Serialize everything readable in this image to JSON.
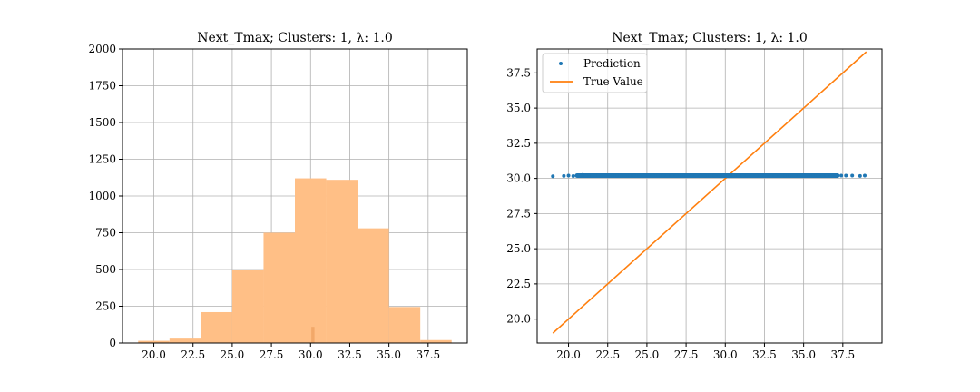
{
  "chart_data": [
    {
      "type": "bar",
      "title": "Next_Tmax; Clusters: 1, λ: 1.0",
      "xlabel": "",
      "ylabel": "",
      "xlim": [
        18,
        40
      ],
      "ylim": [
        0,
        2000
      ],
      "xticks": [
        20.0,
        22.5,
        25.0,
        27.5,
        30.0,
        32.5,
        35.0,
        37.5
      ],
      "yticks": [
        0,
        250,
        500,
        750,
        1000,
        1250,
        1500,
        1750,
        2000
      ],
      "grid": true,
      "bar_color": "#ffbf86",
      "bins": [
        {
          "x0": 19.0,
          "x1": 21.0,
          "count": 15
        },
        {
          "x0": 21.0,
          "x1": 23.0,
          "count": 30
        },
        {
          "x0": 23.0,
          "x1": 25.0,
          "count": 210
        },
        {
          "x0": 25.0,
          "x1": 27.0,
          "count": 500
        },
        {
          "x0": 27.0,
          "x1": 29.0,
          "count": 750
        },
        {
          "x0": 29.0,
          "x1": 31.0,
          "count": 1120
        },
        {
          "x0": 31.0,
          "x1": 33.0,
          "count": 1110
        },
        {
          "x0": 33.0,
          "x1": 35.0,
          "count": 780
        },
        {
          "x0": 35.0,
          "x1": 37.0,
          "count": 245
        },
        {
          "x0": 37.0,
          "x1": 39.0,
          "count": 20
        }
      ],
      "prediction_bin": {
        "x0": 30.05,
        "x1": 30.25,
        "count": 110
      }
    },
    {
      "type": "scatter",
      "title": "Next_Tmax; Clusters: 1, λ: 1.0",
      "xlabel": "",
      "ylabel": "",
      "xlim": [
        18,
        40
      ],
      "ylim": [
        18.3,
        39.2
      ],
      "xticks": [
        20.0,
        22.5,
        25.0,
        27.5,
        30.0,
        32.5,
        35.0,
        37.5
      ],
      "yticks": [
        20.0,
        22.5,
        25.0,
        27.5,
        30.0,
        32.5,
        35.0,
        37.5
      ],
      "grid": true,
      "legend": "top-left",
      "series": [
        {
          "name": "Prediction",
          "kind": "points",
          "color": "#1f77b4",
          "x": [
            19.0,
            19.7,
            20.0,
            20.3,
            20.6,
            20.9,
            21.1,
            21.3,
            21.5,
            21.7,
            21.9,
            22.1,
            22.3,
            22.6,
            22.8,
            23.1,
            23.3,
            23.6,
            23.9,
            24.2,
            24.5,
            24.8,
            25.1,
            25.4,
            25.7,
            26.0,
            26.3,
            26.6,
            26.9,
            27.2,
            27.5,
            27.8,
            28.1,
            28.4,
            28.7,
            29.0,
            29.3,
            29.6,
            29.9,
            30.2,
            30.5,
            30.8,
            31.1,
            31.4,
            31.7,
            32.0,
            32.3,
            32.6,
            32.9,
            33.2,
            33.5,
            33.8,
            34.1,
            34.4,
            34.7,
            35.0,
            35.3,
            35.6,
            35.9,
            36.2,
            36.5,
            36.8,
            37.1,
            37.4,
            37.7,
            38.1,
            38.6,
            38.9
          ],
          "y": [
            30.15,
            30.18,
            30.2,
            30.17,
            30.22,
            30.25,
            30.2,
            30.18,
            30.21,
            30.23,
            30.2,
            30.19,
            30.22,
            30.2,
            30.21,
            30.19,
            30.22,
            30.2,
            30.2,
            30.21,
            30.19,
            30.2,
            30.2,
            30.21,
            30.2,
            30.19,
            30.2,
            30.2,
            30.21,
            30.2,
            30.2,
            30.19,
            30.2,
            30.21,
            30.2,
            30.2,
            30.2,
            30.19,
            30.2,
            30.21,
            30.2,
            30.2,
            30.19,
            30.2,
            30.21,
            30.2,
            30.2,
            30.19,
            30.2,
            30.21,
            30.2,
            30.2,
            30.19,
            30.2,
            30.2,
            30.21,
            30.2,
            30.19,
            30.2,
            30.2,
            30.21,
            30.2,
            30.19,
            30.2,
            30.2,
            30.2,
            30.18,
            30.2
          ]
        },
        {
          "name": "True Value",
          "kind": "line",
          "color": "#ff7f0e",
          "x": [
            19.0,
            39.0
          ],
          "y": [
            19.0,
            39.0
          ]
        }
      ]
    }
  ]
}
